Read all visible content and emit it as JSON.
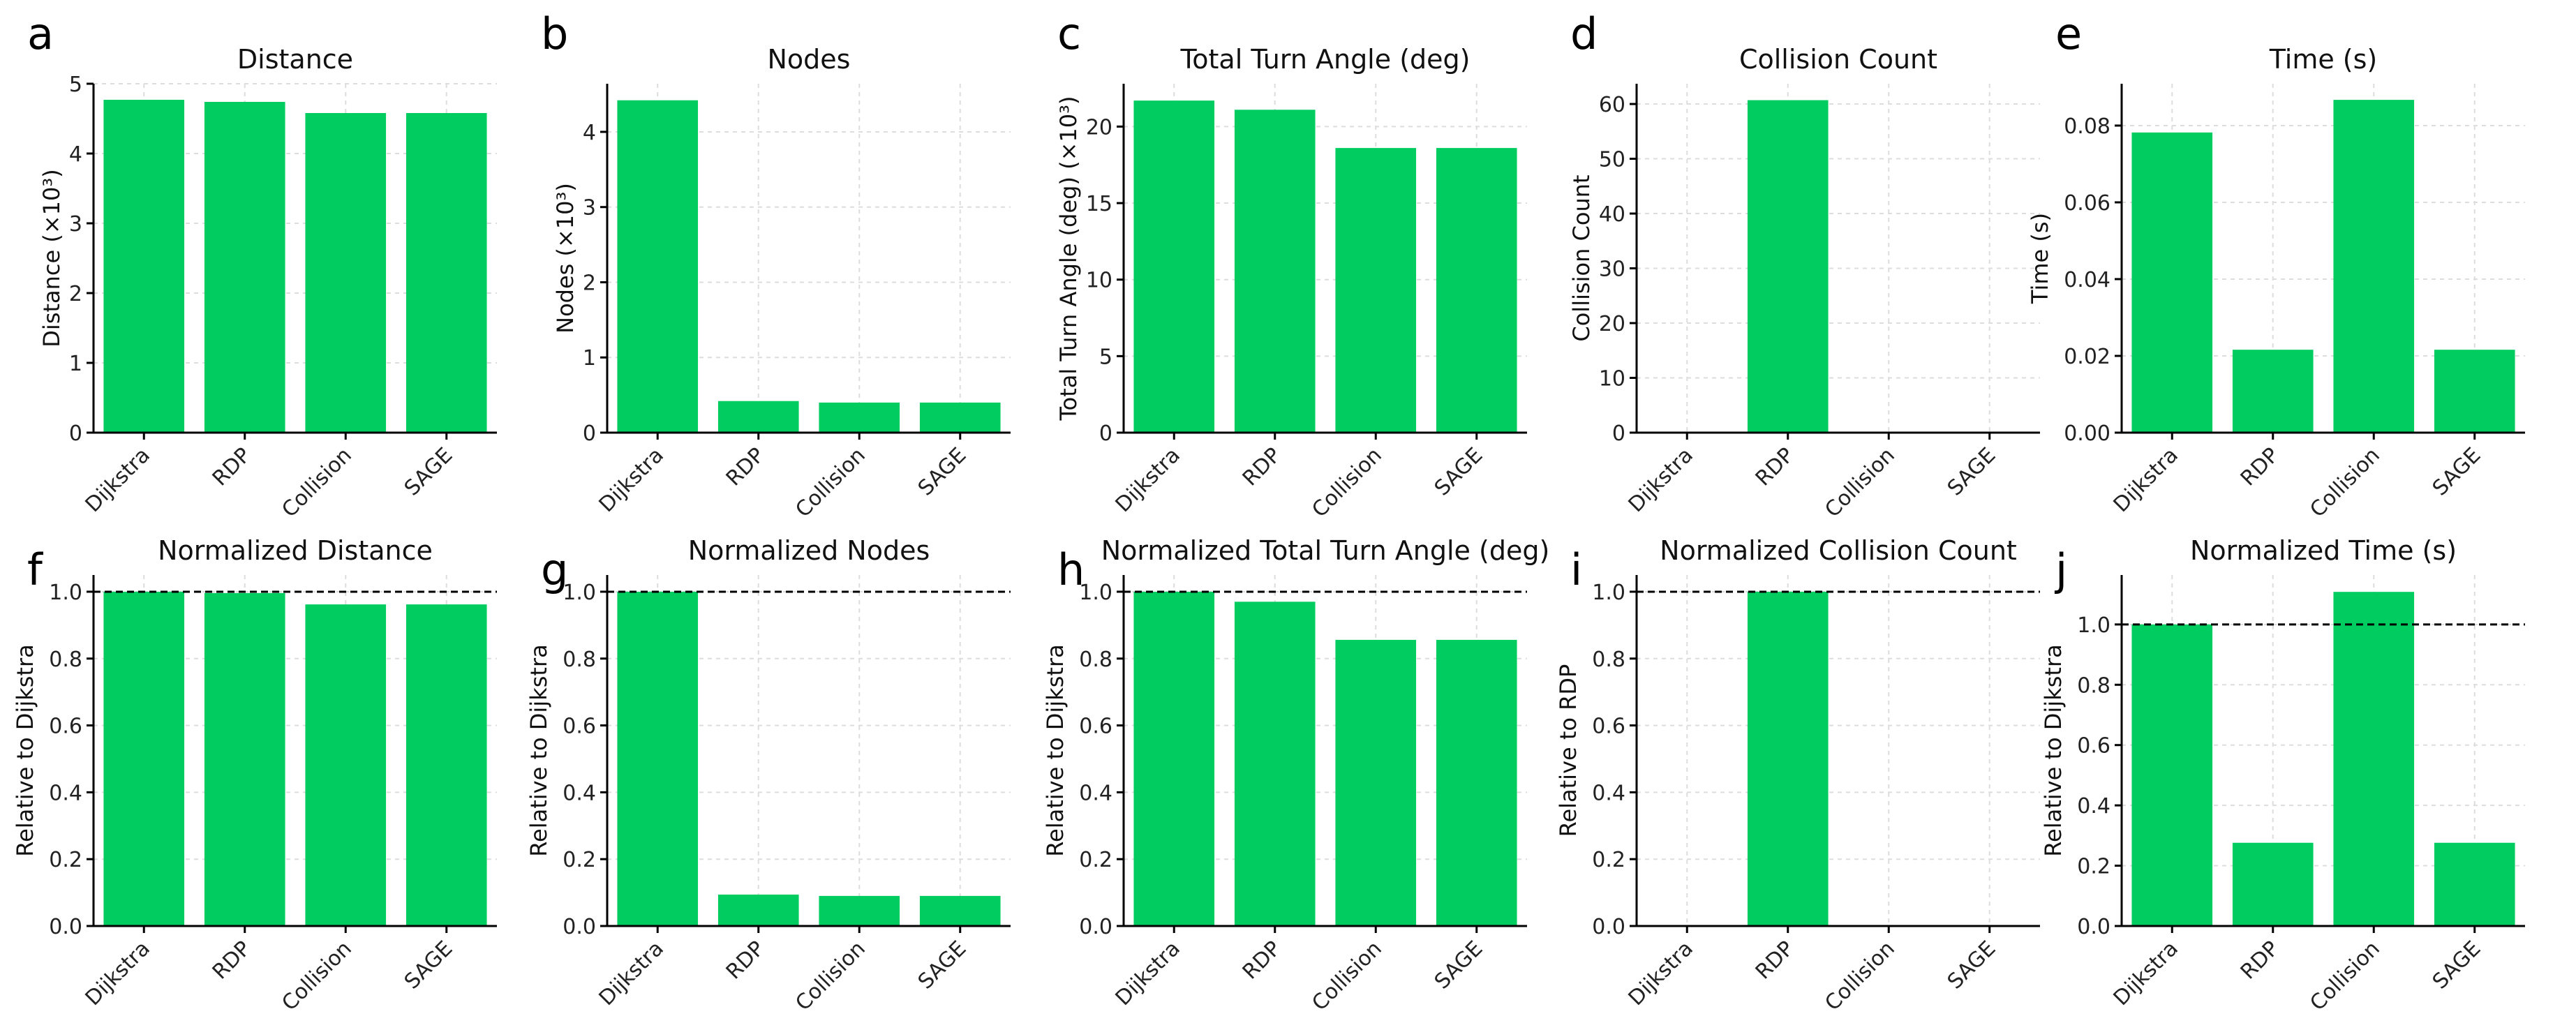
{
  "bar_color": "#00CC5F",
  "chart_data": [
    {
      "letter": "a",
      "type": "bar",
      "title": "Distance",
      "ylabel": "Distance (×10³)",
      "categories": [
        "Dijkstra",
        "RDP",
        "Collision",
        "SAGE"
      ],
      "values": [
        4.77,
        4.74,
        4.58,
        4.58
      ],
      "ylim": [
        0,
        5
      ],
      "yticks": [
        "0",
        "1",
        "2",
        "3",
        "4",
        "5"
      ],
      "grid": true
    },
    {
      "letter": "b",
      "type": "bar",
      "title": "Nodes",
      "ylabel": "Nodes (×10³)",
      "categories": [
        "Dijkstra",
        "RDP",
        "Collision",
        "SAGE"
      ],
      "values": [
        4.42,
        0.42,
        0.4,
        0.4
      ],
      "ylim": [
        0,
        4.64
      ],
      "yticks": [
        "0",
        "1",
        "2",
        "3",
        "4"
      ],
      "grid": true
    },
    {
      "letter": "c",
      "type": "bar",
      "title": "Total Turn Angle (deg)",
      "ylabel": "Total Turn Angle (deg) (×10³)",
      "categories": [
        "Dijkstra",
        "RDP",
        "Collision",
        "SAGE"
      ],
      "values": [
        21.7,
        21.1,
        18.6,
        18.6
      ],
      "ylim": [
        0,
        22.8
      ],
      "yticks": [
        "0",
        "5",
        "10",
        "15",
        "20"
      ],
      "grid": true
    },
    {
      "letter": "d",
      "type": "bar",
      "title": "Collision Count",
      "ylabel": "Collision Count",
      "categories": [
        "Dijkstra",
        "RDP",
        "Collision",
        "SAGE"
      ],
      "values": [
        0,
        60.7,
        0,
        0
      ],
      "ylim": [
        0,
        63.7
      ],
      "yticks": [
        "0",
        "10",
        "20",
        "30",
        "40",
        "50",
        "60"
      ],
      "grid": true
    },
    {
      "letter": "e",
      "type": "bar",
      "title": "Time (s)",
      "ylabel": "Time (s)",
      "categories": [
        "Dijkstra",
        "RDP",
        "Collision",
        "SAGE"
      ],
      "values": [
        0.0782,
        0.0216,
        0.0867,
        0.0216
      ],
      "ylim": [
        0,
        0.0909
      ],
      "yticks": [
        "0.00",
        "0.02",
        "0.04",
        "0.06",
        "0.08"
      ],
      "grid": true
    },
    {
      "letter": "f",
      "type": "bar",
      "title": "Normalized Distance",
      "ylabel": "Relative to Dijkstra",
      "categories": [
        "Dijkstra",
        "RDP",
        "Collision",
        "SAGE"
      ],
      "values": [
        1.0,
        0.996,
        0.962,
        0.962
      ],
      "ylim": [
        0,
        1.05
      ],
      "yticks": [
        "0.0",
        "0.2",
        "0.4",
        "0.6",
        "0.8",
        "1.0"
      ],
      "reference_line": 1.0,
      "grid": true
    },
    {
      "letter": "g",
      "type": "bar",
      "title": "Normalized Nodes",
      "ylabel": "Relative to Dijkstra",
      "categories": [
        "Dijkstra",
        "RDP",
        "Collision",
        "SAGE"
      ],
      "values": [
        1.0,
        0.094,
        0.09,
        0.09
      ],
      "ylim": [
        0,
        1.05
      ],
      "yticks": [
        "0.0",
        "0.2",
        "0.4",
        "0.6",
        "0.8",
        "1.0"
      ],
      "reference_line": 1.0,
      "grid": true
    },
    {
      "letter": "h",
      "type": "bar",
      "title": "Normalized Total Turn Angle (deg)",
      "ylabel": "Relative to Dijkstra",
      "categories": [
        "Dijkstra",
        "RDP",
        "Collision",
        "SAGE"
      ],
      "values": [
        1.0,
        0.97,
        0.856,
        0.856
      ],
      "ylim": [
        0,
        1.05
      ],
      "yticks": [
        "0.0",
        "0.2",
        "0.4",
        "0.6",
        "0.8",
        "1.0"
      ],
      "reference_line": 1.0,
      "grid": true
    },
    {
      "letter": "i",
      "type": "bar",
      "title": "Normalized Collision Count",
      "ylabel": "Relative to RDP",
      "categories": [
        "Dijkstra",
        "RDP",
        "Collision",
        "SAGE"
      ],
      "values": [
        0,
        1.0,
        0,
        0
      ],
      "ylim": [
        0,
        1.05
      ],
      "yticks": [
        "0.0",
        "0.2",
        "0.4",
        "0.6",
        "0.8",
        "1.0"
      ],
      "reference_line": 1.0,
      "grid": true
    },
    {
      "letter": "j",
      "type": "bar",
      "title": "Normalized Time (s)",
      "ylabel": "Relative to Dijkstra",
      "categories": [
        "Dijkstra",
        "RDP",
        "Collision",
        "SAGE"
      ],
      "values": [
        1.0,
        0.276,
        1.108,
        0.276
      ],
      "ylim": [
        0,
        1.164
      ],
      "yticks": [
        "0.0",
        "0.2",
        "0.4",
        "0.6",
        "0.8",
        "1.0"
      ],
      "reference_line": 1.0,
      "grid": true
    }
  ]
}
